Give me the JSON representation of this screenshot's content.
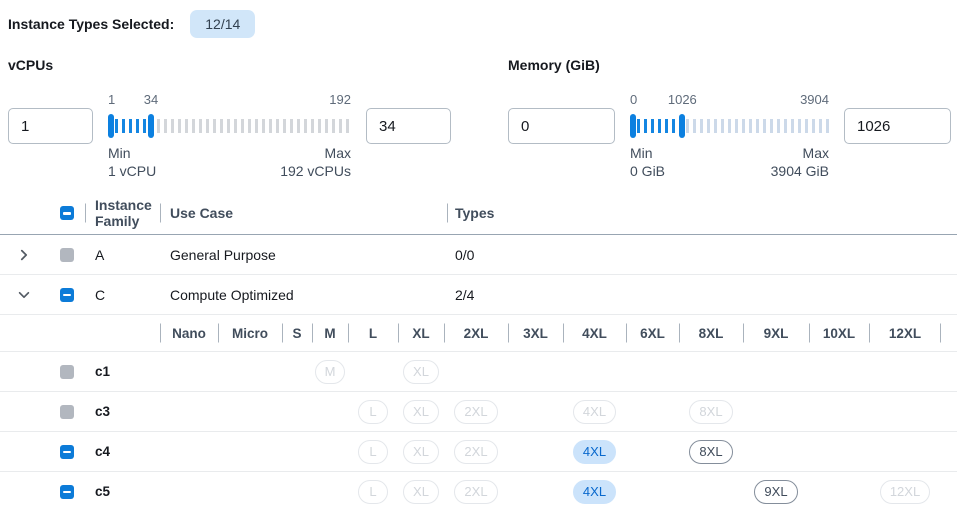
{
  "selection_summary": {
    "label": "Instance Types Selected:",
    "badge": "12/14"
  },
  "sliders": [
    {
      "title": "vCPUs",
      "from_value": "1",
      "to_value": "34",
      "tick_labels": {
        "start": "1",
        "mid": "34",
        "end": "192"
      },
      "min_title": "Min",
      "min_text": "1 vCPU",
      "max_title": "Max",
      "max_text": "192 vCPUs",
      "range_end_pct": 17.7
    },
    {
      "title": "Memory (GiB)",
      "from_value": "0",
      "to_value": "1026",
      "tick_labels": {
        "start": "0",
        "mid": "1026",
        "end": "3904"
      },
      "min_title": "Min",
      "min_text": "0 GiB",
      "max_title": "Max",
      "max_text": "3904 GiB",
      "range_end_pct": 26.3
    }
  ],
  "table": {
    "headers": {
      "family": "Instance Family",
      "use_case": "Use Case",
      "types": "Types"
    },
    "header_checkbox": "indeterminate",
    "size_columns": [
      "Nano",
      "Micro",
      "S",
      "M",
      "L",
      "XL",
      "2XL",
      "3XL",
      "4XL",
      "6XL",
      "8XL",
      "9XL",
      "10XL",
      "12XL"
    ],
    "rows": [
      {
        "kind": "family",
        "expanded": false,
        "checkbox": "gray",
        "family": "A",
        "use_case": "General Purpose",
        "types": "0/0"
      },
      {
        "kind": "family",
        "expanded": true,
        "checkbox": "blue",
        "family": "C",
        "use_case": "Compute Optimized",
        "types": "2/4"
      },
      {
        "kind": "size_header"
      },
      {
        "kind": "instance",
        "checkbox": "gray",
        "name": "c1",
        "badges": [
          {
            "size": "M",
            "state": "disabled"
          },
          {
            "size": "XL",
            "state": "disabled"
          }
        ]
      },
      {
        "kind": "instance",
        "checkbox": "gray",
        "name": "c3",
        "badges": [
          {
            "size": "L",
            "state": "disabled"
          },
          {
            "size": "XL",
            "state": "disabled"
          },
          {
            "size": "2XL",
            "state": "disabled"
          },
          {
            "size": "4XL",
            "state": "disabled"
          },
          {
            "size": "8XL",
            "state": "disabled"
          }
        ]
      },
      {
        "kind": "instance",
        "checkbox": "blue",
        "name": "c4",
        "badges": [
          {
            "size": "L",
            "state": "disabled"
          },
          {
            "size": "XL",
            "state": "disabled"
          },
          {
            "size": "2XL",
            "state": "disabled"
          },
          {
            "size": "4XL",
            "state": "selected"
          },
          {
            "size": "8XL",
            "state": "enabled"
          }
        ]
      },
      {
        "kind": "instance",
        "checkbox": "blue",
        "name": "c5",
        "badges": [
          {
            "size": "L",
            "state": "disabled"
          },
          {
            "size": "XL",
            "state": "disabled"
          },
          {
            "size": "2XL",
            "state": "disabled"
          },
          {
            "size": "4XL",
            "state": "selected"
          },
          {
            "size": "9XL",
            "state": "enabled"
          },
          {
            "size": "12XL",
            "state": "disabled"
          }
        ]
      }
    ]
  },
  "colors": {
    "accent_blue": "#0c7bd8",
    "slider_active": "#1486e2",
    "summary_badge_bg": "#d1e6f9",
    "selected_badge_bg": "#cbe3fb",
    "selected_badge_text": "#0868cd",
    "disabled_gray": "#b2b7bf"
  }
}
